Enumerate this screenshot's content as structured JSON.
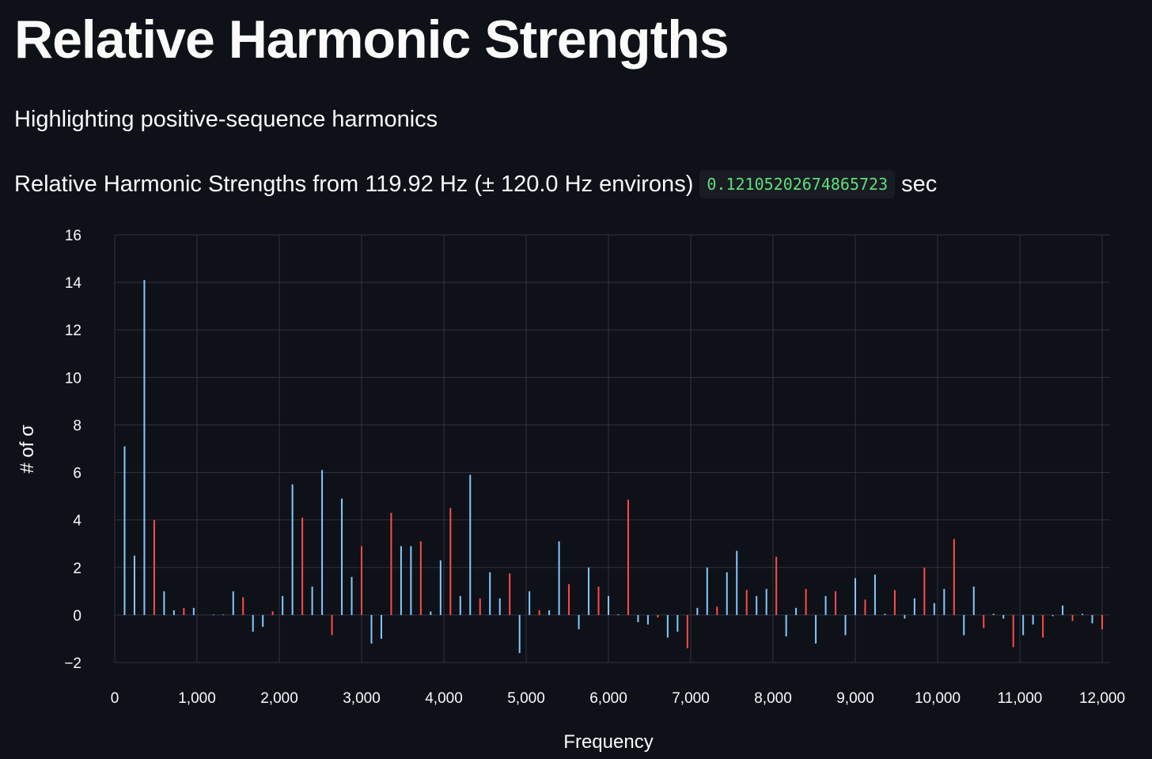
{
  "page": {
    "title": "Relative Harmonic Strengths",
    "subtitle": "Highlighting positive-sequence harmonics",
    "caption_prefix": "Relative Harmonic Strengths from 119.92 Hz (± 120.0 Hz environs)",
    "caption_code": "0.12105202674865723",
    "caption_suffix": "sec"
  },
  "colors": {
    "background": "#0e1117",
    "grid": "#31333f",
    "other": "#83c9ff",
    "positive_sequence": "#ff4b4b",
    "code_text": "#5ce07a"
  },
  "chart_data": {
    "type": "bar",
    "title": "",
    "xlabel": "Frequency",
    "ylabel": "# of σ",
    "xlim": [
      0,
      12000
    ],
    "ylim": [
      -2,
      16
    ],
    "xticks": [
      0,
      1000,
      2000,
      3000,
      4000,
      5000,
      6000,
      7000,
      8000,
      9000,
      10000,
      11000,
      12000
    ],
    "xtick_labels": [
      "0",
      "1,000",
      "2,000",
      "3,000",
      "4,000",
      "5,000",
      "6,000",
      "7,000",
      "8,000",
      "9,000",
      "10,000",
      "11,000",
      "12,000"
    ],
    "yticks": [
      -2,
      0,
      2,
      4,
      6,
      8,
      10,
      12,
      14,
      16
    ],
    "ytick_labels": [
      "−2",
      "0",
      "2",
      "4",
      "6",
      "8",
      "10",
      "12",
      "14",
      "16"
    ],
    "grid": true,
    "legend": "none",
    "series": [
      {
        "color": "#83c9ff",
        "x": [
          120,
          240,
          360,
          600,
          720,
          960,
          1200,
          1320,
          1440,
          1680,
          1800,
          2040,
          2160,
          2400,
          2520,
          2760,
          2880,
          3120,
          3240,
          3480,
          3600,
          3840,
          3960,
          4200,
          4320,
          4560,
          4680,
          4920,
          5040,
          5280,
          5400,
          5640,
          5760,
          6000,
          6120,
          6360,
          6480,
          6720,
          6840,
          7080,
          7200,
          7440,
          7560,
          7800,
          7920,
          8160,
          8280,
          8520,
          8640,
          8880,
          9000,
          9240,
          9360,
          9600,
          9720,
          9960,
          10080,
          10320,
          10440,
          10680,
          10800,
          11040,
          11160,
          11400,
          11520,
          11760,
          11880
        ],
        "values": [
          7.1,
          2.5,
          14.1,
          1.0,
          0.2,
          0.3,
          0.02,
          0.02,
          1.0,
          -0.7,
          -0.5,
          0.8,
          5.5,
          1.2,
          6.1,
          4.9,
          1.6,
          -1.2,
          -1.0,
          2.9,
          2.9,
          0.15,
          2.3,
          0.8,
          5.9,
          1.8,
          0.7,
          -1.6,
          1.0,
          0.2,
          3.1,
          -0.6,
          2.0,
          0.8,
          0.03,
          -0.3,
          -0.4,
          -0.95,
          -0.7,
          0.3,
          2.0,
          1.8,
          2.7,
          0.8,
          1.1,
          -0.9,
          0.3,
          -1.2,
          0.8,
          -0.85,
          1.55,
          1.7,
          0.05,
          -0.15,
          0.7,
          0.5,
          1.1,
          -0.85,
          1.2,
          0.05,
          -0.15,
          -0.85,
          -0.4,
          -0.05,
          0.4,
          0.05,
          -0.35
        ]
      },
      {
        "color": "#ff4b4b",
        "x": [
          480,
          840,
          1560,
          1920,
          2280,
          2640,
          3000,
          3360,
          3720,
          4080,
          4440,
          4800,
          5160,
          5520,
          5880,
          6240,
          6600,
          6960,
          7320,
          7680,
          8040,
          8400,
          8760,
          9120,
          9480,
          9840,
          10200,
          10560,
          10920,
          11280,
          11640,
          12000
        ],
        "values": [
          4.0,
          0.3,
          0.75,
          0.15,
          4.1,
          -0.85,
          2.9,
          4.3,
          3.1,
          4.5,
          0.7,
          1.75,
          0.2,
          1.3,
          1.2,
          4.85,
          -0.1,
          -1.4,
          0.35,
          1.05,
          2.45,
          1.1,
          1.0,
          0.65,
          1.05,
          2.0,
          3.2,
          -0.55,
          -1.35,
          -0.95,
          -0.25,
          -0.6
        ]
      }
    ]
  }
}
